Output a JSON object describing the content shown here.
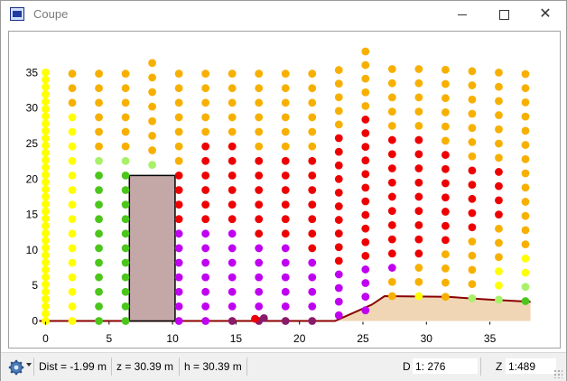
{
  "window": {
    "title": "Coupe",
    "controls": {
      "minimize": "minimize",
      "maximize": "maximize",
      "close": "close"
    },
    "icon": "app-icon"
  },
  "chart_data": {
    "type": "scatter",
    "title": "",
    "xlabel": "",
    "ylabel": "",
    "xlim": [
      -0.5,
      38.5
    ],
    "ylim": [
      -1,
      37
    ],
    "x_ticks": [
      0,
      5,
      10,
      15,
      20,
      25,
      30,
      35
    ],
    "y_ticks": [
      0,
      5,
      10,
      15,
      20,
      25,
      30,
      35
    ],
    "grid": false,
    "colors": {
      "yellow": "#ffff00",
      "lightgreen": "#a9f06a",
      "green": "#4cc61c",
      "orange": "#f7b000",
      "red": "#ee0000",
      "magenta": "#c000f0",
      "purple": "#8a1a6a",
      "ground_fill": "#f0d6b4",
      "ground_line": "#8b0000",
      "building_fill": "#c4a8a8",
      "building_stroke": "#000000"
    },
    "building": {
      "x0": 6.6,
      "x1": 10.2,
      "y0": 0,
      "y1": 20.5
    },
    "ground": {
      "x": [
        -0.5,
        22.6,
        22.8,
        25.7,
        26.7,
        31.7,
        35.0,
        38.2
      ],
      "y": [
        0,
        0,
        0,
        2.3,
        3.5,
        3.4,
        3.0,
        2.7
      ]
    },
    "columns": [
      {
        "x": 0,
        "y0": 0,
        "dy": 1.03,
        "colors": [
          "yellow",
          "yellow",
          "yellow",
          "yellow",
          "yellow",
          "yellow",
          "yellow",
          "yellow",
          "yellow",
          "yellow",
          "yellow",
          "yellow",
          "yellow",
          "yellow",
          "yellow",
          "yellow",
          "yellow",
          "yellow",
          "yellow",
          "yellow",
          "yellow",
          "yellow",
          "yellow",
          "yellow",
          "yellow",
          "yellow",
          "yellow",
          "yellow",
          "yellow",
          "yellow",
          "yellow",
          "yellow",
          "yellow",
          "yellow",
          "yellow"
        ]
      },
      {
        "x": 2.1,
        "y0": 0,
        "dy": 2.05,
        "colors": [
          "yellow",
          "yellow",
          "yellow",
          "yellow",
          "yellow",
          "yellow",
          "yellow",
          "yellow",
          "yellow",
          "yellow",
          "yellow",
          "yellow",
          "yellow",
          "yellow",
          "yellow",
          "orange",
          "orange",
          "orange"
        ]
      },
      {
        "x": 4.2,
        "y0": 0,
        "dy": 2.05,
        "colors": [
          "green",
          "green",
          "green",
          "green",
          "green",
          "green",
          "green",
          "green",
          "green",
          "green",
          "green",
          "lightgreen",
          "orange",
          "orange",
          "orange",
          "orange",
          "orange",
          "orange"
        ]
      },
      {
        "x": 6.3,
        "y0": 0,
        "dy": 2.05,
        "colors": [
          "green",
          "green",
          "green",
          "green",
          "green",
          "green",
          "green",
          "green",
          "green",
          "green",
          "green",
          "lightgreen",
          "orange",
          "orange",
          "orange",
          "orange",
          "orange",
          "orange"
        ]
      },
      {
        "x": 8.4,
        "y0": 22,
        "dy": 2.05,
        "colors": [
          "lightgreen",
          "orange",
          "orange",
          "orange",
          "orange",
          "orange",
          "orange",
          "orange"
        ]
      },
      {
        "x": 10.5,
        "y0": 0,
        "dy": 2.05,
        "colors": [
          "magenta",
          "magenta",
          "magenta",
          "magenta",
          "magenta",
          "magenta",
          "magenta",
          "red",
          "red",
          "red",
          "red",
          "orange",
          "orange",
          "orange",
          "orange",
          "orange",
          "orange",
          "orange"
        ]
      },
      {
        "x": 12.6,
        "y0": 0,
        "dy": 2.05,
        "colors": [
          "magenta",
          "magenta",
          "magenta",
          "magenta",
          "magenta",
          "magenta",
          "magenta",
          "red",
          "red",
          "red",
          "red",
          "red",
          "red",
          "orange",
          "orange",
          "orange",
          "orange",
          "orange"
        ]
      },
      {
        "x": 14.7,
        "y0": 0,
        "dy": 2.05,
        "colors": [
          "purple",
          "magenta",
          "magenta",
          "magenta",
          "magenta",
          "magenta",
          "magenta",
          "red",
          "red",
          "red",
          "red",
          "red",
          "red",
          "orange",
          "orange",
          "orange",
          "orange",
          "orange"
        ]
      },
      {
        "x": 16.8,
        "y0": 0,
        "dy": 2.05,
        "colors": [
          "purple",
          "magenta",
          "magenta",
          "magenta",
          "magenta",
          "magenta",
          "red",
          "red",
          "red",
          "red",
          "red",
          "red",
          "orange",
          "orange",
          "orange",
          "orange",
          "orange",
          "orange"
        ]
      },
      {
        "x": 18.9,
        "y0": 0,
        "dy": 2.05,
        "colors": [
          "purple",
          "magenta",
          "magenta",
          "magenta",
          "magenta",
          "magenta",
          "red",
          "red",
          "red",
          "red",
          "red",
          "red",
          "orange",
          "orange",
          "orange",
          "orange",
          "orange",
          "orange"
        ]
      },
      {
        "x": 21.0,
        "y0": 0,
        "dy": 2.05,
        "colors": [
          "purple",
          "magenta",
          "magenta",
          "magenta",
          "magenta",
          "red",
          "red",
          "red",
          "red",
          "red",
          "red",
          "red",
          "orange",
          "orange",
          "orange",
          "orange",
          "orange",
          "orange"
        ]
      },
      {
        "x": 23.1,
        "y0": 0.8,
        "dy": 1.92,
        "colors": [
          "magenta",
          "magenta",
          "magenta",
          "magenta",
          "red",
          "red",
          "red",
          "red",
          "red",
          "red",
          "red",
          "red",
          "red",
          "red",
          "orange",
          "orange",
          "orange",
          "orange",
          "orange"
        ]
      },
      {
        "x": 25.2,
        "y0": 1.5,
        "dy": 1.92,
        "colors": [
          "magenta",
          "magenta",
          "magenta",
          "magenta",
          "red",
          "red",
          "red",
          "red",
          "red",
          "red",
          "red",
          "red",
          "red",
          "red",
          "red",
          "orange",
          "orange",
          "orange",
          "orange",
          "orange"
        ]
      },
      {
        "x": 27.3,
        "y0": 3.5,
        "dy": 2.0,
        "colors": [
          "orange",
          "orange",
          "magenta",
          "red",
          "red",
          "red",
          "red",
          "red",
          "red",
          "red",
          "red",
          "red",
          "orange",
          "orange",
          "orange",
          "orange",
          "orange"
        ]
      },
      {
        "x": 29.4,
        "y0": 3.5,
        "dy": 2.0,
        "colors": [
          "yellow",
          "orange",
          "orange",
          "red",
          "red",
          "red",
          "red",
          "red",
          "red",
          "red",
          "red",
          "red",
          "orange",
          "orange",
          "orange",
          "orange",
          "orange"
        ]
      },
      {
        "x": 31.5,
        "y0": 3.4,
        "dy": 2.0,
        "colors": [
          "orange",
          "orange",
          "orange",
          "orange",
          "red",
          "red",
          "red",
          "red",
          "red",
          "red",
          "red",
          "orange",
          "orange",
          "orange",
          "orange",
          "orange",
          "orange"
        ]
      },
      {
        "x": 33.6,
        "y0": 3.2,
        "dy": 2.0,
        "colors": [
          "lightgreen",
          "orange",
          "orange",
          "orange",
          "orange",
          "red",
          "red",
          "red",
          "red",
          "red",
          "orange",
          "orange",
          "orange",
          "orange",
          "orange",
          "orange",
          "orange"
        ]
      },
      {
        "x": 35.7,
        "y0": 3.0,
        "dy": 2.0,
        "colors": [
          "lightgreen",
          "yellow",
          "yellow",
          "orange",
          "orange",
          "orange",
          "red",
          "red",
          "red",
          "red",
          "orange",
          "orange",
          "orange",
          "orange",
          "orange",
          "orange",
          "orange"
        ]
      },
      {
        "x": 37.8,
        "y0": 2.8,
        "dy": 2.0,
        "colors": [
          "green",
          "lightgreen",
          "yellow",
          "yellow",
          "orange",
          "orange",
          "orange",
          "orange",
          "orange",
          "orange",
          "orange",
          "orange",
          "orange",
          "orange",
          "orange",
          "orange",
          "orange"
        ]
      }
    ],
    "base_points": [
      {
        "x": 16.5,
        "y": 0.3,
        "color": "red"
      },
      {
        "x": 17.2,
        "y": 0.4,
        "color": "purple"
      }
    ]
  },
  "status": {
    "menu_icon": "gear-icon",
    "dist": "Dist = -1.99 m",
    "z": "z = 30.39 m",
    "h": "h = 30.39 m",
    "d_label": "D",
    "d_scale": "1: 276",
    "z_label": "Z",
    "z_scale": "1:489"
  }
}
